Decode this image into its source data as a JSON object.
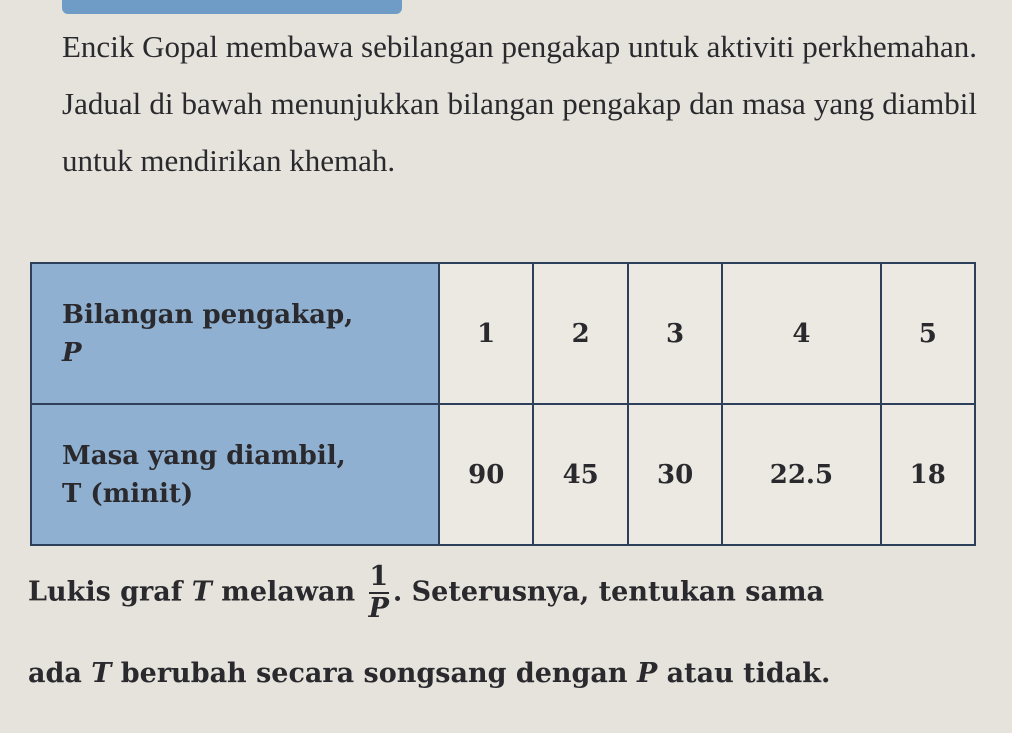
{
  "paragraph": "Encik Gopal membawa sebilangan pengakap untuk aktiviti perkhemahan. Jadual di bawah menunjukkan bilangan pengakap dan masa yang diambil untuk mendirikan khemah.",
  "table": {
    "row1": {
      "header": "Bilangan pengakap,",
      "var": "P",
      "values": [
        "1",
        "2",
        "3",
        "4",
        "5"
      ]
    },
    "row2": {
      "header": "Masa yang diambil,",
      "var": "T (minit)",
      "values": [
        "90",
        "45",
        "30",
        "22.5",
        "18"
      ]
    }
  },
  "question": {
    "part1": "Lukis graf ",
    "var_t": "T",
    "part2": " melawan ",
    "frac_num": "1",
    "frac_den": "P",
    "part3": ". Seterusnya, tentukan sama",
    "line2a": "ada ",
    "line2_t": "T",
    "line2b": " berubah secara songsang dengan ",
    "line2_p": "P",
    "line2c": " atau tidak."
  },
  "colors": {
    "header_fill": "#8fb0d0",
    "border": "#2e3f5a"
  }
}
